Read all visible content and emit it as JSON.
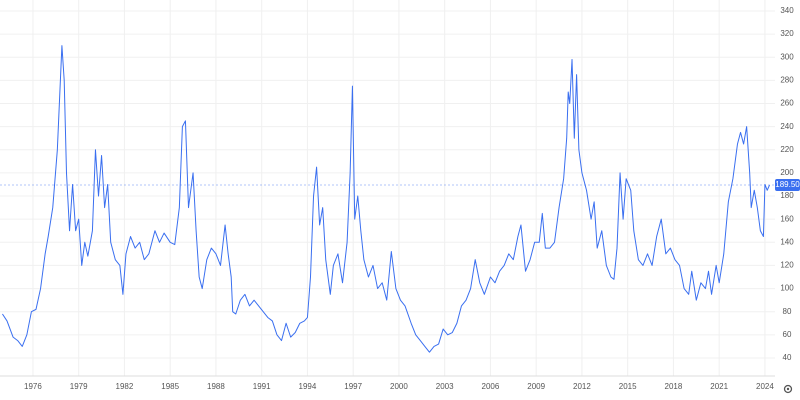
{
  "chart_data": {
    "type": "line",
    "x": [
      1974.0,
      1974.3,
      1974.7,
      1975.0,
      1975.3,
      1975.6,
      1975.9,
      1976.2,
      1976.5,
      1976.8,
      1977.0,
      1977.3,
      1977.6,
      1977.7,
      1977.9,
      1978.05,
      1978.2,
      1978.4,
      1978.6,
      1978.8,
      1979.0,
      1979.2,
      1979.4,
      1979.6,
      1979.9,
      1980.1,
      1980.3,
      1980.5,
      1980.7,
      1980.9,
      1981.1,
      1981.4,
      1981.7,
      1981.9,
      1982.1,
      1982.4,
      1982.7,
      1983.0,
      1983.3,
      1983.6,
      1984.0,
      1984.3,
      1984.6,
      1985.0,
      1985.3,
      1985.6,
      1985.8,
      1986.0,
      1986.2,
      1986.5,
      1986.7,
      1986.9,
      1987.1,
      1987.4,
      1987.7,
      1988.0,
      1988.3,
      1988.6,
      1988.8,
      1989.0,
      1989.1,
      1989.3,
      1989.6,
      1989.9,
      1990.2,
      1990.5,
      1990.8,
      1991.1,
      1991.4,
      1991.7,
      1992.0,
      1992.3,
      1992.6,
      1992.9,
      1993.2,
      1993.5,
      1993.8,
      1994.0,
      1994.2,
      1994.4,
      1994.6,
      1994.8,
      1995.0,
      1995.2,
      1995.5,
      1995.7,
      1996.0,
      1996.3,
      1996.6,
      1996.8,
      1996.95,
      1997.1,
      1997.3,
      1997.5,
      1997.7,
      1998.0,
      1998.3,
      1998.6,
      1998.9,
      1999.2,
      1999.5,
      1999.8,
      2000.1,
      2000.4,
      2000.8,
      2001.1,
      2001.4,
      2001.7,
      2002.0,
      2002.3,
      2002.6,
      2002.9,
      2003.2,
      2003.5,
      2003.8,
      2004.1,
      2004.4,
      2004.7,
      2005.0,
      2005.3,
      2005.6,
      2006.0,
      2006.3,
      2006.6,
      2006.9,
      2007.2,
      2007.5,
      2007.8,
      2008.0,
      2008.3,
      2008.6,
      2008.9,
      2009.2,
      2009.4,
      2009.6,
      2009.9,
      2010.2,
      2010.5,
      2010.8,
      2011.0,
      2011.1,
      2011.2,
      2011.35,
      2011.5,
      2011.65,
      2011.8,
      2012.0,
      2012.3,
      2012.6,
      2012.8,
      2013.0,
      2013.3,
      2013.6,
      2013.9,
      2014.1,
      2014.3,
      2014.5,
      2014.7,
      2014.9,
      2015.2,
      2015.4,
      2015.7,
      2016.0,
      2016.3,
      2016.6,
      2016.9,
      2017.2,
      2017.5,
      2017.8,
      2018.1,
      2018.4,
      2018.7,
      2019.0,
      2019.2,
      2019.5,
      2019.8,
      2020.1,
      2020.3,
      2020.5,
      2020.8,
      2021.0,
      2021.3,
      2021.6,
      2021.9,
      2022.2,
      2022.4,
      2022.6,
      2022.8,
      2023.0,
      2023.1,
      2023.3,
      2023.5,
      2023.7,
      2023.9,
      2024.0,
      2024.15,
      2024.3
    ],
    "series": [
      {
        "color": "#3a6ff0",
        "values": [
          78,
          72,
          58,
          55,
          50,
          60,
          80,
          82,
          100,
          130,
          145,
          170,
          220,
          250,
          310,
          280,
          200,
          150,
          190,
          150,
          160,
          120,
          140,
          128,
          150,
          220,
          180,
          215,
          170,
          190,
          140,
          125,
          120,
          95,
          130,
          145,
          135,
          140,
          125,
          130,
          150,
          140,
          148,
          140,
          138,
          170,
          240,
          245,
          170,
          200,
          150,
          110,
          100,
          125,
          135,
          130,
          120,
          155,
          130,
          110,
          80,
          78,
          90,
          95,
          85,
          90,
          85,
          80,
          75,
          72,
          60,
          55,
          70,
          58,
          62,
          70,
          72,
          75,
          110,
          180,
          205,
          155,
          170,
          125,
          95,
          120,
          130,
          105,
          140,
          200,
          275,
          160,
          180,
          150,
          125,
          110,
          120,
          100,
          105,
          90,
          132,
          100,
          90,
          85,
          70,
          60,
          55,
          50,
          45,
          50,
          52,
          65,
          60,
          62,
          70,
          85,
          90,
          100,
          125,
          105,
          95,
          110,
          105,
          115,
          120,
          130,
          125,
          145,
          155,
          115,
          125,
          140,
          140,
          165,
          135,
          135,
          140,
          170,
          195,
          230,
          270,
          260,
          298,
          230,
          285,
          220,
          200,
          185,
          160,
          175,
          135,
          150,
          120,
          110,
          108,
          135,
          200,
          160,
          195,
          185,
          150,
          125,
          120,
          130,
          120,
          145,
          160,
          130,
          135,
          125,
          120,
          100,
          95,
          115,
          90,
          105,
          100,
          115,
          95,
          120,
          105,
          130,
          175,
          195,
          225,
          235,
          225,
          240,
          200,
          170,
          185,
          170,
          150,
          145,
          190,
          185,
          189.5
        ]
      }
    ],
    "xlim": [
      1973.84,
      2024.66
    ],
    "xticks": [
      1976,
      1979,
      1982,
      1985,
      1988,
      1991,
      1994,
      1997,
      2000,
      2003,
      2006,
      2009,
      2012,
      2015,
      2018,
      2021,
      2024
    ],
    "ylim": [
      24.4,
      349.5
    ],
    "yticks": [
      40,
      60,
      80,
      100,
      120,
      140,
      160,
      180,
      200,
      220,
      240,
      260,
      280,
      300,
      320,
      340
    ],
    "grid": true,
    "last_value": 189.5,
    "last_value_label": "189.50"
  }
}
